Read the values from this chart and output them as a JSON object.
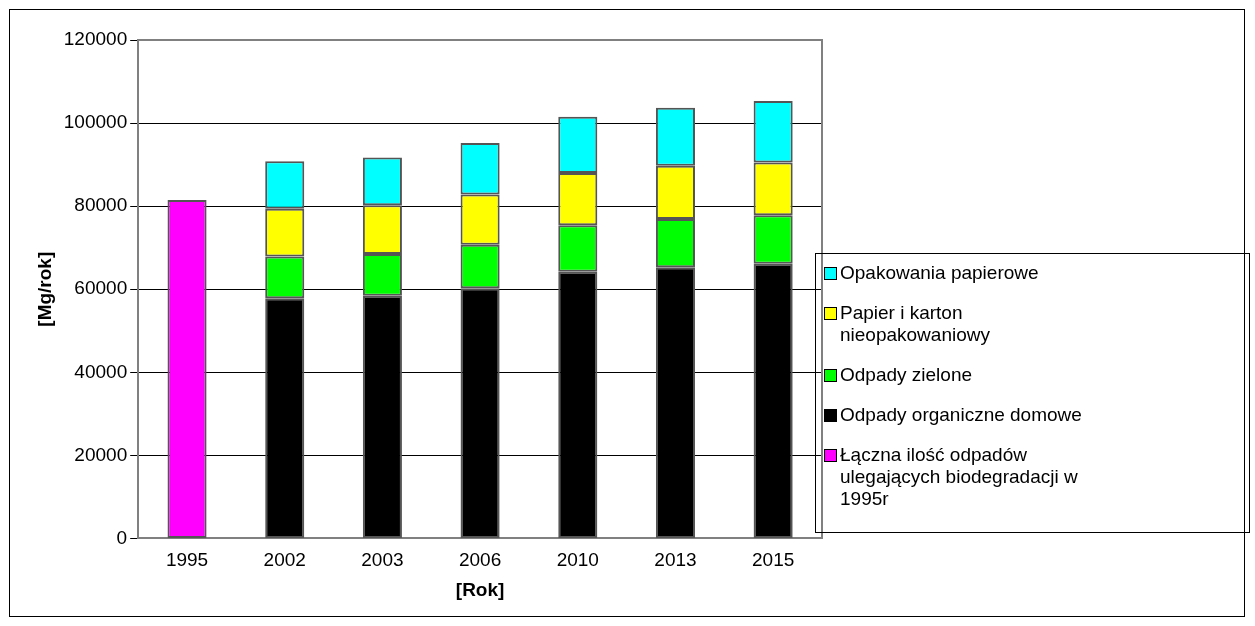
{
  "chart_data": {
    "type": "bar",
    "stacked": true,
    "xlabel": "[Rok]",
    "ylabel": "[Mg/rok]",
    "categories": [
      "1995",
      "2002",
      "2003",
      "2006",
      "2010",
      "2013",
      "2015"
    ],
    "series": [
      {
        "name": "Łączna ilość odpadów ulegających biodegradacji w 1995r",
        "color": "#ff00ff",
        "values": [
          81500,
          null,
          null,
          null,
          null,
          null,
          null
        ]
      },
      {
        "name": "Odpady organiczne domowe",
        "color": "#000000",
        "values": [
          null,
          57800,
          58400,
          60200,
          64200,
          65300,
          66100
        ]
      },
      {
        "name": "Odpady zielone",
        "color": "#00ff00",
        "values": [
          null,
          10100,
          10100,
          10500,
          11200,
          11600,
          11700
        ]
      },
      {
        "name": "Papier i karton nieopakowaniowy",
        "color": "#ffff00",
        "values": [
          null,
          11500,
          11700,
          12100,
          12600,
          12800,
          12700
        ]
      },
      {
        "name": "Opakowania papierowe",
        "color": "#00ffff",
        "values": [
          null,
          11400,
          11500,
          12400,
          13500,
          14000,
          14800
        ]
      }
    ],
    "ylim": [
      0,
      120000
    ],
    "yticks": [
      0,
      20000,
      40000,
      60000,
      80000,
      100000,
      120000
    ],
    "grid": "y",
    "legend": "right"
  }
}
